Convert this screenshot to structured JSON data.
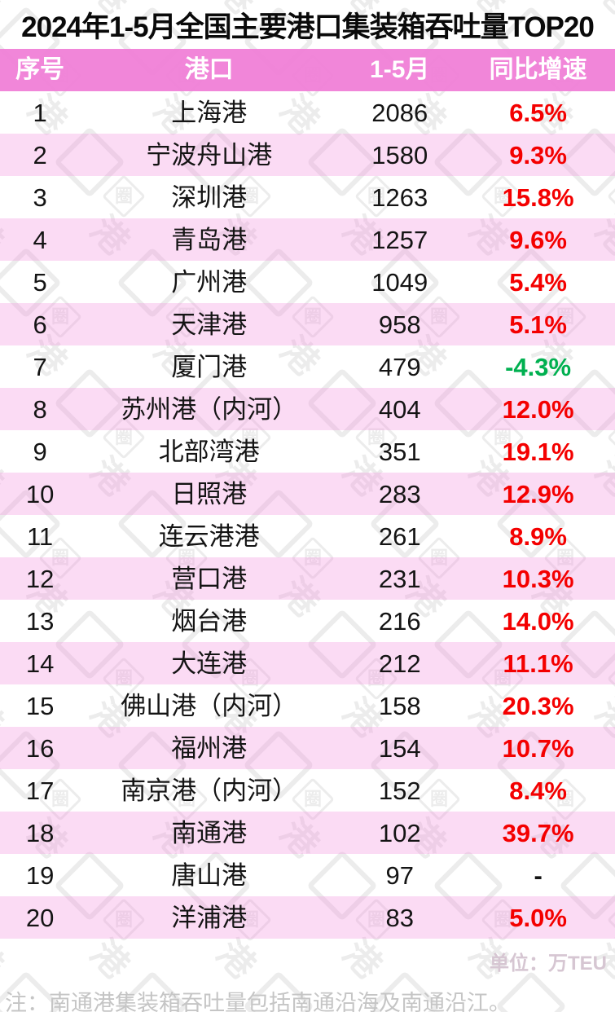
{
  "chart_data": {
    "type": "table",
    "title": "2024年1-5月全国主要港口集装箱吞吐量TOP20",
    "columns": [
      "序号",
      "港口",
      "1-5月",
      "同比增速"
    ],
    "unit": "万TEU",
    "rows": [
      {
        "rank": "1",
        "port": "上海港",
        "value": "2086",
        "growth": "6.5%"
      },
      {
        "rank": "2",
        "port": "宁波舟山港",
        "value": "1580",
        "growth": "9.3%"
      },
      {
        "rank": "3",
        "port": "深圳港",
        "value": "1263",
        "growth": "15.8%"
      },
      {
        "rank": "4",
        "port": "青岛港",
        "value": "1257",
        "growth": "9.6%"
      },
      {
        "rank": "5",
        "port": "广州港",
        "value": "1049",
        "growth": "5.4%"
      },
      {
        "rank": "6",
        "port": "天津港",
        "value": "958",
        "growth": "5.1%"
      },
      {
        "rank": "7",
        "port": "厦门港",
        "value": "479",
        "growth": "-4.3%"
      },
      {
        "rank": "8",
        "port": "苏州港（内河）",
        "value": "404",
        "growth": "12.0%"
      },
      {
        "rank": "9",
        "port": "北部湾港",
        "value": "351",
        "growth": "19.1%"
      },
      {
        "rank": "10",
        "port": "日照港",
        "value": "283",
        "growth": "12.9%"
      },
      {
        "rank": "11",
        "port": "连云港港",
        "value": "261",
        "growth": "8.9%"
      },
      {
        "rank": "12",
        "port": "营口港",
        "value": "231",
        "growth": "10.3%"
      },
      {
        "rank": "13",
        "port": "烟台港",
        "value": "216",
        "growth": "14.0%"
      },
      {
        "rank": "14",
        "port": "大连港",
        "value": "212",
        "growth": "11.1%"
      },
      {
        "rank": "15",
        "port": "佛山港（内河）",
        "value": "158",
        "growth": "20.3%"
      },
      {
        "rank": "16",
        "port": "福州港",
        "value": "154",
        "growth": "10.7%"
      },
      {
        "rank": "17",
        "port": "南京港（内河）",
        "value": "152",
        "growth": "8.4%"
      },
      {
        "rank": "18",
        "port": "南通港",
        "value": "102",
        "growth": "39.7%"
      },
      {
        "rank": "19",
        "port": "唐山港",
        "value": "97",
        "growth": "-"
      },
      {
        "rank": "20",
        "port": "洋浦港",
        "value": "83",
        "growth": "5.0%"
      }
    ]
  },
  "footer": {
    "unit_label": "单位：万TEU",
    "note": "注：南通港集装箱吞吐量包括南通沿海及南通沿江。"
  },
  "watermark": {
    "char_top": "港",
    "char_bottom": "圈"
  },
  "colors": {
    "header_pink": "#f287d9",
    "row_pink": "#fae1f3",
    "positive_red": "#f40000",
    "negative_green": "#00b050",
    "neutral_black": "#141414"
  }
}
